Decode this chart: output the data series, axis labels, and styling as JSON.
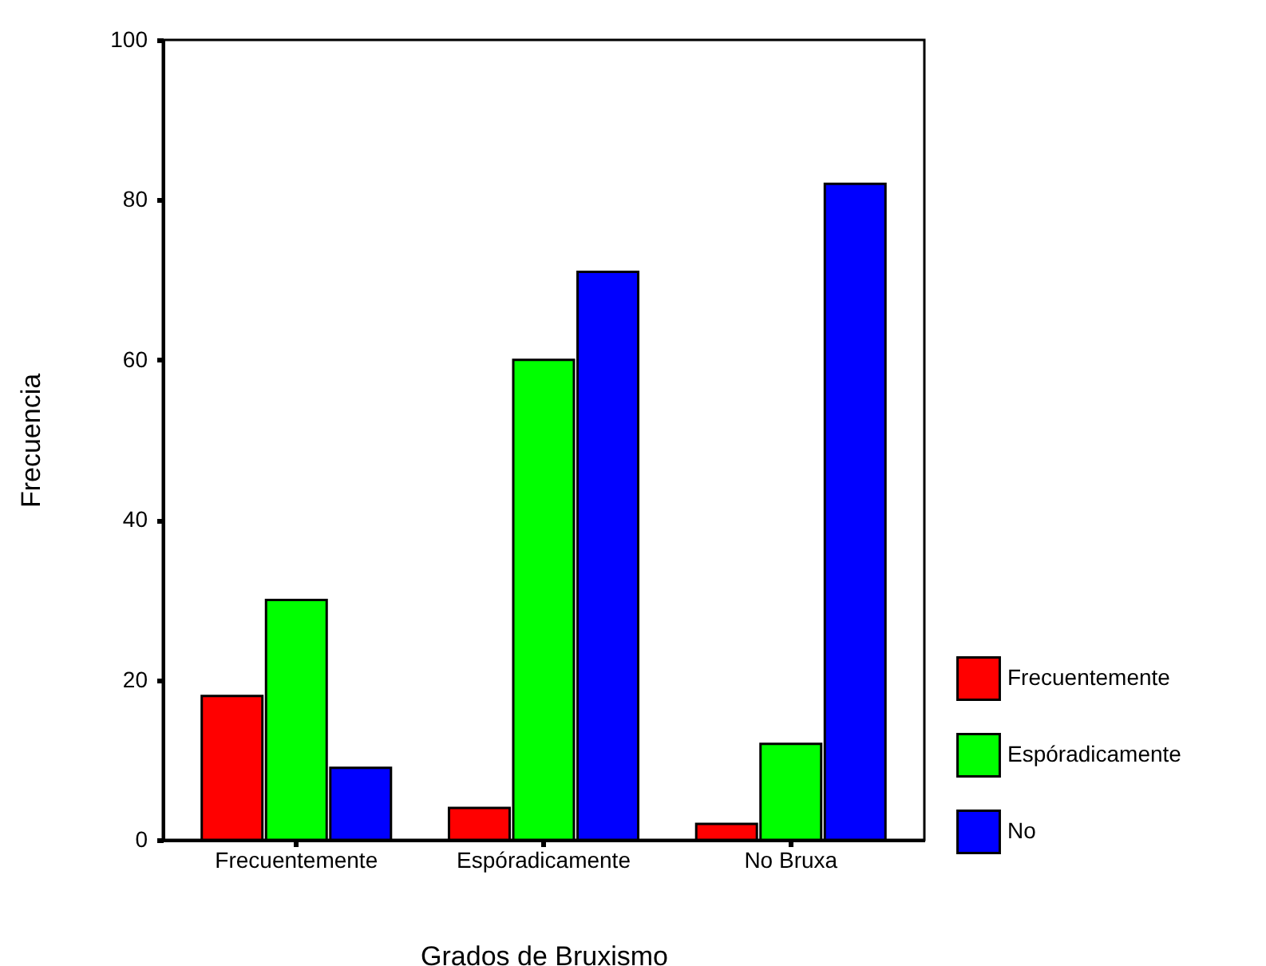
{
  "chart_data": {
    "type": "bar",
    "xlabel": "Grados de Bruxismo",
    "ylabel": "Frecuencia",
    "categories": [
      "Frecuentemente",
      "Espóradicamente",
      "No Bruxa"
    ],
    "series": [
      {
        "name": "Frecuentemente",
        "color": "#ff0000",
        "values": [
          18,
          4,
          2
        ]
      },
      {
        "name": "Espóradicamente",
        "color": "#00ff00",
        "values": [
          30,
          60,
          12
        ]
      },
      {
        "name": "No",
        "color": "#0000ff",
        "values": [
          9,
          71,
          82
        ]
      }
    ],
    "ylim": [
      0,
      100
    ],
    "yticks": [
      0,
      20,
      40,
      60,
      80,
      100
    ],
    "grid": false,
    "legend": "right"
  }
}
